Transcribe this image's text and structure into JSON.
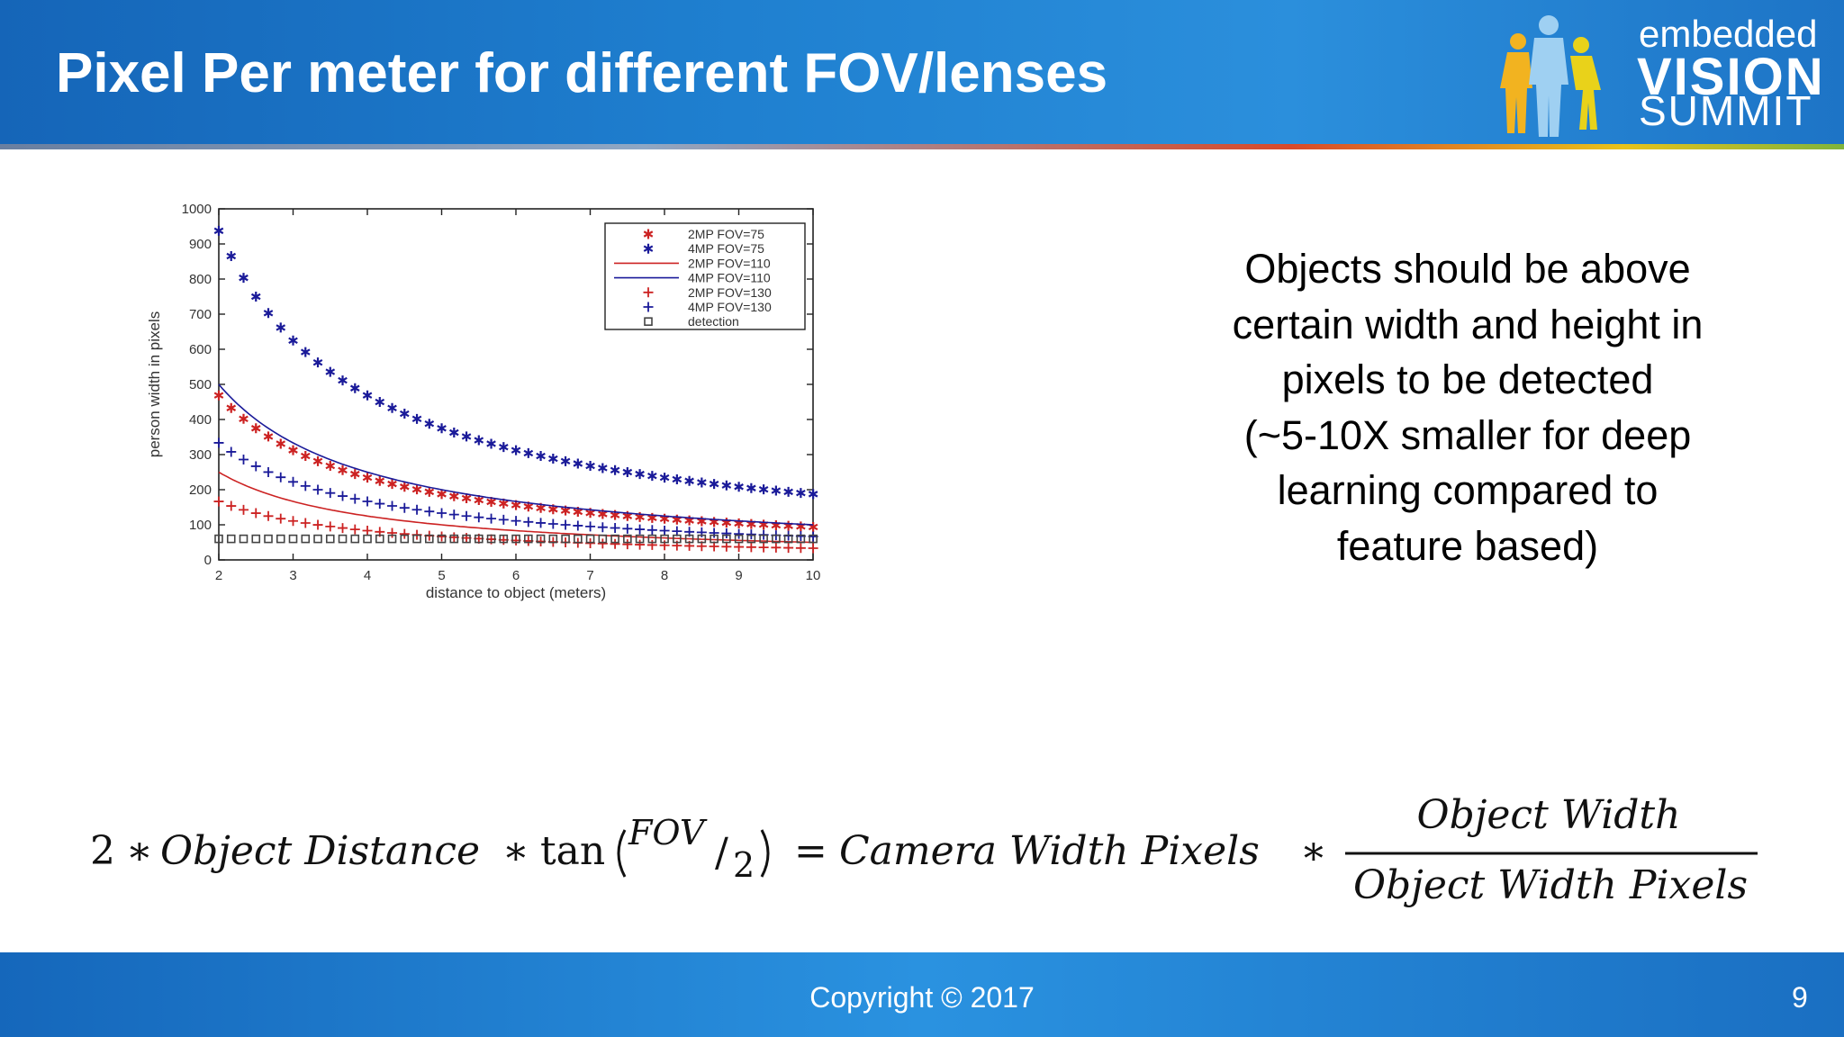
{
  "slide": {
    "title": "Pixel Per meter for different FOV/lenses",
    "logo": {
      "line1": "embedded",
      "line2": "VISION",
      "line3": "SUMMIT"
    },
    "body_lines": [
      "Objects should be above",
      "certain width and height in",
      "pixels to be detected",
      "(~5-10X smaller for deep",
      "learning compared to",
      "feature based)"
    ],
    "formula": {
      "lhs_coef": "2",
      "op_star": "∗",
      "lhs_var": "Object Distance",
      "tan": "tan",
      "fov": "FOV",
      "slash_two": "2",
      "equals": "=",
      "rhs_var": "Camera Width Pixels",
      "numerator": "Object Width",
      "denominator": "Object Width Pixels"
    },
    "footer": {
      "copyright": "Copyright © 2017",
      "page_number": "9"
    },
    "colors": {
      "header_blue": "#1f80d0",
      "red_series": "#cc2222",
      "blue_series": "#1a1a99"
    }
  },
  "chart_data": {
    "type": "scatter",
    "title": "",
    "xlabel": "distance to object (meters)",
    "ylabel": "person width in pixels",
    "xlim": [
      2,
      10
    ],
    "ylim": [
      0,
      1000
    ],
    "xticks": [
      2,
      3,
      4,
      5,
      6,
      7,
      8,
      9,
      10
    ],
    "yticks": [
      0,
      100,
      200,
      300,
      400,
      500,
      600,
      700,
      800,
      900,
      1000
    ],
    "x_start": 2,
    "x_step": 0.1667,
    "point_count": 49,
    "legend_position": "top-right",
    "series": [
      {
        "name": "2MP FOV=75",
        "marker": "asterisk",
        "color": "#cc2222",
        "k": 937.5
      },
      {
        "name": "4MP FOV=75",
        "marker": "asterisk",
        "color": "#1a1a99",
        "k": 1875
      },
      {
        "name": "2MP FOV=110",
        "marker": "line",
        "color": "#cc2222",
        "k": 500
      },
      {
        "name": "4MP FOV=110",
        "marker": "line",
        "color": "#1a1a99",
        "k": 1000
      },
      {
        "name": "2MP FOV=130",
        "marker": "plus",
        "color": "#cc2222",
        "k": 333
      },
      {
        "name": "4MP FOV=130",
        "marker": "plus",
        "color": "#1a1a99",
        "k": 667
      },
      {
        "name": "detection",
        "marker": "square",
        "color": "#444444",
        "k": 0,
        "constant": 60
      }
    ]
  }
}
